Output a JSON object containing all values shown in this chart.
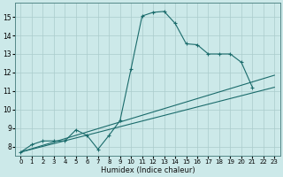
{
  "xlabel": "Humidex (Indice chaleur)",
  "ylabel": "",
  "background_color": "#cce9e9",
  "grid_color": "#aacccc",
  "line_color": "#1a6b6b",
  "xlim": [
    -0.5,
    23.5
  ],
  "ylim": [
    7.5,
    15.75
  ],
  "yticks": [
    8,
    9,
    10,
    11,
    12,
    13,
    14,
    15
  ],
  "xticks": [
    0,
    1,
    2,
    3,
    4,
    5,
    6,
    7,
    8,
    9,
    10,
    11,
    12,
    13,
    14,
    15,
    16,
    17,
    18,
    19,
    20,
    21,
    22,
    23
  ],
  "line1_x": [
    0,
    1,
    2,
    3,
    4,
    5,
    6,
    7,
    8,
    9,
    10,
    11,
    12,
    13,
    14,
    15,
    16,
    17,
    18,
    19,
    20,
    21
  ],
  "line1_y": [
    7.7,
    8.1,
    8.3,
    8.3,
    8.3,
    8.9,
    8.6,
    7.85,
    8.6,
    9.4,
    12.2,
    15.05,
    15.25,
    15.3,
    14.65,
    13.55,
    13.5,
    13.0,
    13.0,
    13.0,
    12.55,
    11.2
  ],
  "line2_x": [
    0,
    23
  ],
  "line2_y": [
    7.7,
    11.2
  ],
  "line3_x": [
    0,
    23
  ],
  "line3_y": [
    7.7,
    11.85
  ]
}
